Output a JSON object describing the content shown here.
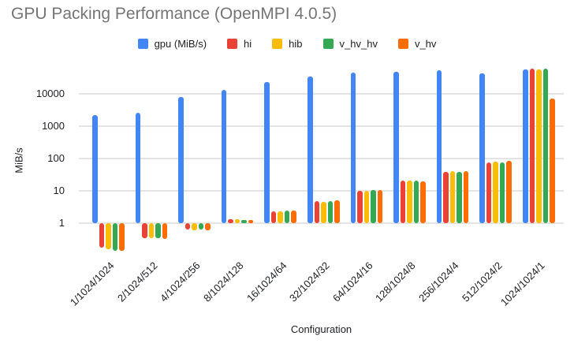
{
  "title": "GPU Packing Performance (OpenMPI 4.0.5)",
  "axes": {
    "xlabel": "Configuration",
    "ylabel": "MiB/s"
  },
  "chart_data": {
    "type": "bar",
    "title": "GPU Packing Performance (OpenMPI 4.0.5)",
    "xlabel": "Configuration",
    "ylabel": "MiB/s",
    "y_scale": "log",
    "y_ticks": [
      1,
      10,
      100,
      1000,
      10000
    ],
    "ylim": [
      0.12,
      70000
    ],
    "bar_baseline": 1,
    "grid": true,
    "legend_position": "top",
    "categories": [
      "1/1024/1024",
      "2/1024/512",
      "4/1024/256",
      "8/1024/128",
      "16/1024/64",
      "32/1024/32",
      "64/1024/16",
      "128/1024/8",
      "256/1024/4",
      "512/1024/2",
      "1024/1024/1"
    ],
    "series": [
      {
        "name": "gpu (MiB/s)",
        "color": "#4285F4",
        "values": [
          2200,
          2600,
          8000,
          13000,
          24000,
          34000,
          45000,
          49000,
          54000,
          43000,
          57000
        ]
      },
      {
        "name": "hi",
        "color": "#EA4335",
        "values": [
          0.17,
          0.34,
          0.62,
          1.3,
          2.3,
          4.8,
          10,
          20.5,
          37.5,
          75,
          60000
        ]
      },
      {
        "name": "hib",
        "color": "#FBBC04",
        "values": [
          0.15,
          0.33,
          0.6,
          1.3,
          2.3,
          4.6,
          10,
          20.5,
          40,
          80,
          57000
        ]
      },
      {
        "name": "v_hv_hv",
        "color": "#34A853",
        "values": [
          0.14,
          0.33,
          0.62,
          1.25,
          2.4,
          4.8,
          10.3,
          20.5,
          38,
          76,
          62000
        ]
      },
      {
        "name": "v_hv",
        "color": "#FF6D01",
        "values": [
          0.135,
          0.32,
          0.6,
          1.25,
          2.4,
          5.0,
          10.3,
          19.5,
          40,
          82,
          7000
        ]
      }
    ]
  },
  "colors": {
    "title_text": "#757575",
    "axis_text": "#202124",
    "gridline": "#e4e4e4",
    "background": "#ffffff"
  }
}
